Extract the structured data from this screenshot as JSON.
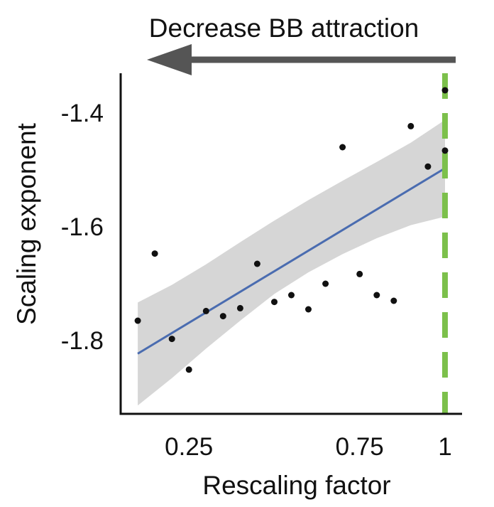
{
  "banner": {
    "label": "Decrease BB attraction"
  },
  "chart_data": {
    "type": "scatter",
    "xlabel": "Rescaling factor",
    "ylabel": "Scaling exponent",
    "xlim": [
      0.05,
      1.05
    ],
    "ylim": [
      -1.93,
      -1.33
    ],
    "xticks": [
      0.25,
      0.75,
      1
    ],
    "xtick_labels": [
      "0.25",
      "0.75",
      "1"
    ],
    "yticks": [
      -1.4,
      -1.6,
      -1.8
    ],
    "ytick_labels": [
      "-1.4",
      "-1.6",
      "-1.8"
    ],
    "grid": false,
    "points": [
      {
        "x": 0.1,
        "y": -1.765
      },
      {
        "x": 0.15,
        "y": -1.647
      },
      {
        "x": 0.2,
        "y": -1.797
      },
      {
        "x": 0.25,
        "y": -1.851
      },
      {
        "x": 0.3,
        "y": -1.748
      },
      {
        "x": 0.35,
        "y": -1.757
      },
      {
        "x": 0.4,
        "y": -1.743
      },
      {
        "x": 0.45,
        "y": -1.665
      },
      {
        "x": 0.5,
        "y": -1.732
      },
      {
        "x": 0.55,
        "y": -1.72
      },
      {
        "x": 0.6,
        "y": -1.745
      },
      {
        "x": 0.65,
        "y": -1.7
      },
      {
        "x": 0.7,
        "y": -1.46
      },
      {
        "x": 0.75,
        "y": -1.683
      },
      {
        "x": 0.8,
        "y": -1.72
      },
      {
        "x": 0.85,
        "y": -1.73
      },
      {
        "x": 0.9,
        "y": -1.423
      },
      {
        "x": 0.95,
        "y": -1.494
      },
      {
        "x": 1.0,
        "y": -1.466
      },
      {
        "x": 1.0,
        "y": -1.36
      }
    ],
    "fit": {
      "x": [
        0.1,
        1.0
      ],
      "y": [
        -1.823,
        -1.497
      ],
      "ci_upper": [
        {
          "x": 0.1,
          "y": -1.733
        },
        {
          "x": 0.2,
          "y": -1.702
        },
        {
          "x": 0.3,
          "y": -1.666
        },
        {
          "x": 0.4,
          "y": -1.627
        },
        {
          "x": 0.5,
          "y": -1.589
        },
        {
          "x": 0.6,
          "y": -1.553
        },
        {
          "x": 0.7,
          "y": -1.519
        },
        {
          "x": 0.8,
          "y": -1.486
        },
        {
          "x": 0.9,
          "y": -1.452
        },
        {
          "x": 1.0,
          "y": -1.412
        }
      ],
      "ci_lower": [
        {
          "x": 0.1,
          "y": -1.914
        },
        {
          "x": 0.2,
          "y": -1.866
        },
        {
          "x": 0.3,
          "y": -1.814
        },
        {
          "x": 0.4,
          "y": -1.765
        },
        {
          "x": 0.5,
          "y": -1.718
        },
        {
          "x": 0.6,
          "y": -1.68
        },
        {
          "x": 0.7,
          "y": -1.648
        },
        {
          "x": 0.8,
          "y": -1.62
        },
        {
          "x": 0.9,
          "y": -1.597
        },
        {
          "x": 1.0,
          "y": -1.582
        }
      ]
    },
    "reference_line": {
      "x": 1.0,
      "style": "dashed"
    },
    "colors": {
      "points": "#111111",
      "fit_line": "#4a6cb0",
      "confidence_band": "#d6d6d6",
      "reference_line": "#7cc04b",
      "arrow": "#555555",
      "axis": "#111111"
    }
  }
}
